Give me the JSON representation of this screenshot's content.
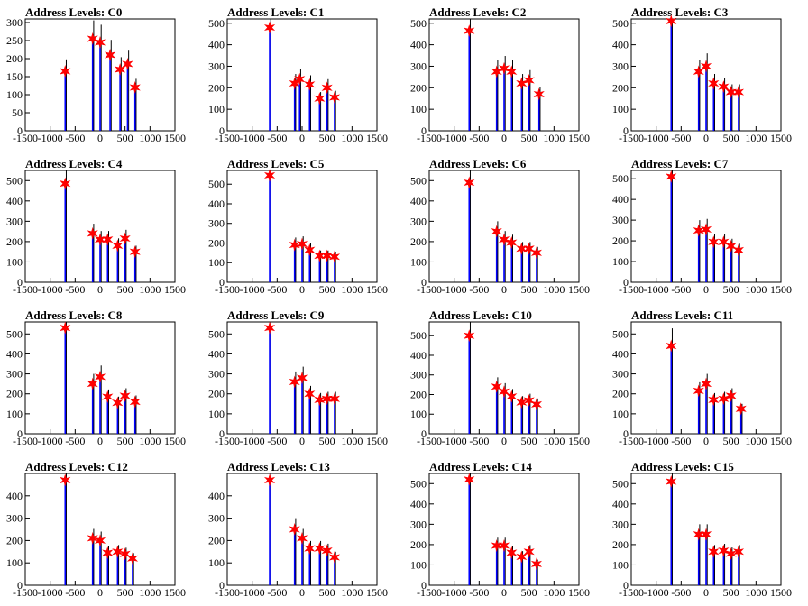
{
  "chart_data": [
    {
      "type": "histogram",
      "title": "Address Levels: C0",
      "xlim": [
        -1500,
        1500
      ],
      "ylim": [
        0,
        310
      ],
      "yticks": [
        0,
        50,
        100,
        150,
        200,
        250,
        300
      ],
      "xticks": [
        -1500,
        -1000,
        -500,
        0,
        500,
        1000,
        1500
      ],
      "peaks": {
        "x": [
          -700,
          -150,
          0,
          200,
          400,
          550,
          700
        ],
        "y": [
          165,
          255,
          245,
          210,
          170,
          185,
          120
        ]
      }
    },
    {
      "type": "histogram",
      "title": "Address Levels: C1",
      "xlim": [
        -1500,
        1500
      ],
      "ylim": [
        0,
        520
      ],
      "yticks": [
        0,
        100,
        200,
        300,
        400,
        500
      ],
      "xticks": [
        -1500,
        -1000,
        -500,
        0,
        500,
        1000,
        1500
      ],
      "peaks": {
        "x": [
          -650,
          -150,
          -50,
          150,
          350,
          500,
          650
        ],
        "y": [
          480,
          220,
          240,
          215,
          150,
          200,
          155
        ]
      }
    },
    {
      "type": "histogram",
      "title": "Address Levels: C2",
      "xlim": [
        -1500,
        1500
      ],
      "ylim": [
        0,
        520
      ],
      "yticks": [
        0,
        100,
        200,
        300,
        400,
        500
      ],
      "xticks": [
        -1500,
        -1000,
        -500,
        0,
        500,
        1000,
        1500
      ],
      "peaks": {
        "x": [
          -700,
          -150,
          0,
          150,
          350,
          500,
          700
        ],
        "y": [
          465,
          275,
          290,
          275,
          220,
          235,
          170
        ]
      }
    },
    {
      "type": "histogram",
      "title": "Address Levels: C3",
      "xlim": [
        -1500,
        1500
      ],
      "ylim": [
        0,
        520
      ],
      "yticks": [
        0,
        100,
        200,
        300,
        400,
        500
      ],
      "xticks": [
        -1500,
        -1000,
        -500,
        0,
        500,
        1000,
        1500
      ],
      "peaks": {
        "x": [
          -700,
          -150,
          0,
          150,
          350,
          500,
          650
        ],
        "y": [
          510,
          275,
          300,
          220,
          205,
          180,
          180
        ]
      }
    },
    {
      "type": "histogram",
      "title": "Address Levels: C4",
      "xlim": [
        -1500,
        1500
      ],
      "ylim": [
        0,
        550
      ],
      "yticks": [
        0,
        100,
        200,
        300,
        400,
        500
      ],
      "xticks": [
        -1500,
        -1000,
        -500,
        0,
        500,
        1000,
        1500
      ],
      "peaks": {
        "x": [
          -700,
          -150,
          0,
          150,
          350,
          500,
          700
        ],
        "y": [
          485,
          240,
          210,
          210,
          180,
          215,
          150
        ]
      }
    },
    {
      "type": "histogram",
      "title": "Address Levels: C5",
      "xlim": [
        -1500,
        1500
      ],
      "ylim": [
        0,
        570
      ],
      "yticks": [
        0,
        100,
        200,
        300,
        400,
        500
      ],
      "xticks": [
        -1500,
        -1000,
        -500,
        0,
        500,
        1000,
        1500
      ],
      "peaks": {
        "x": [
          -650,
          -150,
          0,
          150,
          350,
          500,
          650
        ],
        "y": [
          545,
          190,
          195,
          165,
          135,
          135,
          130
        ]
      }
    },
    {
      "type": "histogram",
      "title": "Address Levels: C6",
      "xlim": [
        -1500,
        1500
      ],
      "ylim": [
        0,
        550
      ],
      "yticks": [
        0,
        100,
        200,
        300,
        400,
        500
      ],
      "xticks": [
        -1500,
        -1000,
        -500,
        0,
        500,
        1000,
        1500
      ],
      "peaks": {
        "x": [
          -700,
          -150,
          0,
          150,
          350,
          500,
          650
        ],
        "y": [
          490,
          250,
          210,
          195,
          165,
          165,
          145
        ]
      }
    },
    {
      "type": "histogram",
      "title": "Address Levels: C7",
      "xlim": [
        -1500,
        1500
      ],
      "ylim": [
        0,
        540
      ],
      "yticks": [
        0,
        100,
        200,
        300,
        400,
        500
      ],
      "xticks": [
        -1500,
        -1000,
        -500,
        0,
        500,
        1000,
        1500
      ],
      "peaks": {
        "x": [
          -700,
          -150,
          0,
          150,
          350,
          500,
          650
        ],
        "y": [
          510,
          250,
          255,
          195,
          195,
          175,
          155
        ]
      }
    },
    {
      "type": "histogram",
      "title": "Address Levels: C8",
      "xlim": [
        -1500,
        1500
      ],
      "ylim": [
        0,
        560
      ],
      "yticks": [
        0,
        100,
        200,
        300,
        400,
        500
      ],
      "xticks": [
        -1500,
        -1000,
        -500,
        0,
        500,
        1000,
        1500
      ],
      "peaks": {
        "x": [
          -700,
          -150,
          0,
          150,
          350,
          500,
          700
        ],
        "y": [
          530,
          250,
          285,
          185,
          155,
          190,
          160
        ]
      }
    },
    {
      "type": "histogram",
      "title": "Address Levels: C9",
      "xlim": [
        -1500,
        1500
      ],
      "ylim": [
        0,
        560
      ],
      "yticks": [
        0,
        100,
        200,
        300,
        400,
        500
      ],
      "xticks": [
        -1500,
        -1000,
        -500,
        0,
        500,
        1000,
        1500
      ],
      "peaks": {
        "x": [
          -650,
          -150,
          0,
          150,
          350,
          500,
          650
        ],
        "y": [
          530,
          260,
          280,
          200,
          170,
          175,
          175
        ]
      }
    },
    {
      "type": "histogram",
      "title": "Address Levels: C10",
      "xlim": [
        -1500,
        1500
      ],
      "ylim": [
        0,
        570
      ],
      "yticks": [
        0,
        100,
        200,
        300,
        400,
        500
      ],
      "xticks": [
        -1500,
        -1000,
        -500,
        0,
        500,
        1000,
        1500
      ],
      "peaks": {
        "x": [
          -700,
          -150,
          0,
          150,
          350,
          500,
          650
        ],
        "y": [
          500,
          240,
          215,
          190,
          160,
          170,
          150
        ]
      }
    },
    {
      "type": "histogram",
      "title": "Address Levels: C11",
      "xlim": [
        -1500,
        1500
      ],
      "ylim": [
        0,
        560
      ],
      "yticks": [
        0,
        100,
        200,
        300,
        400,
        500
      ],
      "xticks": [
        -1500,
        -1000,
        -500,
        0,
        500,
        1000,
        1500
      ],
      "peaks": {
        "x": [
          -700,
          -150,
          0,
          150,
          350,
          500,
          700
        ],
        "y": [
          440,
          215,
          250,
          170,
          175,
          190,
          125
        ]
      }
    },
    {
      "type": "histogram",
      "title": "Address Levels: C12",
      "xlim": [
        -1500,
        1500
      ],
      "ylim": [
        0,
        500
      ],
      "yticks": [
        0,
        100,
        200,
        300,
        400
      ],
      "xticks": [
        -1500,
        -1000,
        -500,
        0,
        500,
        1000,
        1500
      ],
      "peaks": {
        "x": [
          -700,
          -150,
          0,
          150,
          350,
          500,
          650
        ],
        "y": [
          470,
          210,
          200,
          145,
          150,
          140,
          120
        ]
      }
    },
    {
      "type": "histogram",
      "title": "Address Levels: C13",
      "xlim": [
        -1500,
        1500
      ],
      "ylim": [
        0,
        500
      ],
      "yticks": [
        0,
        100,
        200,
        300,
        400
      ],
      "xticks": [
        -1500,
        -1000,
        -500,
        0,
        500,
        1000,
        1500
      ],
      "peaks": {
        "x": [
          -650,
          -150,
          0,
          150,
          350,
          500,
          650
        ],
        "y": [
          470,
          250,
          210,
          165,
          165,
          155,
          125
        ]
      }
    },
    {
      "type": "histogram",
      "title": "Address Levels: C14",
      "xlim": [
        -1500,
        1500
      ],
      "ylim": [
        0,
        550
      ],
      "yticks": [
        0,
        100,
        200,
        300,
        400,
        500
      ],
      "xticks": [
        -1500,
        -1000,
        -500,
        0,
        500,
        1000,
        1500
      ],
      "peaks": {
        "x": [
          -700,
          -150,
          0,
          150,
          350,
          500,
          650
        ],
        "y": [
          520,
          195,
          195,
          160,
          140,
          165,
          105
        ]
      }
    },
    {
      "type": "histogram",
      "title": "Address Levels: C15",
      "xlim": [
        -1500,
        1500
      ],
      "ylim": [
        0,
        550
      ],
      "yticks": [
        0,
        100,
        200,
        300,
        400,
        500
      ],
      "xticks": [
        -1500,
        -1000,
        -500,
        0,
        500,
        1000,
        1500
      ],
      "peaks": {
        "x": [
          -700,
          -150,
          0,
          150,
          350,
          500,
          650
        ],
        "y": [
          510,
          250,
          250,
          165,
          170,
          155,
          165
        ]
      }
    }
  ],
  "colors": {
    "histogram": "#0000ff",
    "spike": "#000000",
    "marker": "#ff0000",
    "axis": "#000000"
  }
}
